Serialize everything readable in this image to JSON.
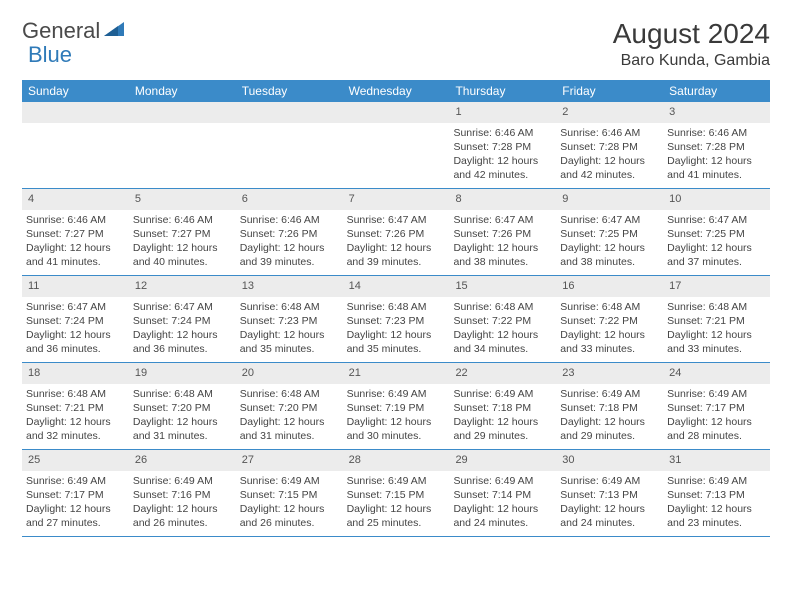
{
  "logo": {
    "text1": "General",
    "text2": "Blue",
    "color_general": "#5a5a5a",
    "color_blue": "#2f7ab8",
    "icon_color": "#2f7ab8"
  },
  "title": "August 2024",
  "location": "Baro Kunda, Gambia",
  "header_bg": "#3b8bc9",
  "header_text_color": "#ffffff",
  "daynum_bg": "#ececec",
  "border_color": "#3b8bc9",
  "weekdays": [
    "Sunday",
    "Monday",
    "Tuesday",
    "Wednesday",
    "Thursday",
    "Friday",
    "Saturday"
  ],
  "weeks": [
    [
      null,
      null,
      null,
      null,
      {
        "n": "1",
        "sr": "Sunrise: 6:46 AM",
        "ss": "Sunset: 7:28 PM",
        "dl": "Daylight: 12 hours and 42 minutes."
      },
      {
        "n": "2",
        "sr": "Sunrise: 6:46 AM",
        "ss": "Sunset: 7:28 PM",
        "dl": "Daylight: 12 hours and 42 minutes."
      },
      {
        "n": "3",
        "sr": "Sunrise: 6:46 AM",
        "ss": "Sunset: 7:28 PM",
        "dl": "Daylight: 12 hours and 41 minutes."
      }
    ],
    [
      {
        "n": "4",
        "sr": "Sunrise: 6:46 AM",
        "ss": "Sunset: 7:27 PM",
        "dl": "Daylight: 12 hours and 41 minutes."
      },
      {
        "n": "5",
        "sr": "Sunrise: 6:46 AM",
        "ss": "Sunset: 7:27 PM",
        "dl": "Daylight: 12 hours and 40 minutes."
      },
      {
        "n": "6",
        "sr": "Sunrise: 6:46 AM",
        "ss": "Sunset: 7:26 PM",
        "dl": "Daylight: 12 hours and 39 minutes."
      },
      {
        "n": "7",
        "sr": "Sunrise: 6:47 AM",
        "ss": "Sunset: 7:26 PM",
        "dl": "Daylight: 12 hours and 39 minutes."
      },
      {
        "n": "8",
        "sr": "Sunrise: 6:47 AM",
        "ss": "Sunset: 7:26 PM",
        "dl": "Daylight: 12 hours and 38 minutes."
      },
      {
        "n": "9",
        "sr": "Sunrise: 6:47 AM",
        "ss": "Sunset: 7:25 PM",
        "dl": "Daylight: 12 hours and 38 minutes."
      },
      {
        "n": "10",
        "sr": "Sunrise: 6:47 AM",
        "ss": "Sunset: 7:25 PM",
        "dl": "Daylight: 12 hours and 37 minutes."
      }
    ],
    [
      {
        "n": "11",
        "sr": "Sunrise: 6:47 AM",
        "ss": "Sunset: 7:24 PM",
        "dl": "Daylight: 12 hours and 36 minutes."
      },
      {
        "n": "12",
        "sr": "Sunrise: 6:47 AM",
        "ss": "Sunset: 7:24 PM",
        "dl": "Daylight: 12 hours and 36 minutes."
      },
      {
        "n": "13",
        "sr": "Sunrise: 6:48 AM",
        "ss": "Sunset: 7:23 PM",
        "dl": "Daylight: 12 hours and 35 minutes."
      },
      {
        "n": "14",
        "sr": "Sunrise: 6:48 AM",
        "ss": "Sunset: 7:23 PM",
        "dl": "Daylight: 12 hours and 35 minutes."
      },
      {
        "n": "15",
        "sr": "Sunrise: 6:48 AM",
        "ss": "Sunset: 7:22 PM",
        "dl": "Daylight: 12 hours and 34 minutes."
      },
      {
        "n": "16",
        "sr": "Sunrise: 6:48 AM",
        "ss": "Sunset: 7:22 PM",
        "dl": "Daylight: 12 hours and 33 minutes."
      },
      {
        "n": "17",
        "sr": "Sunrise: 6:48 AM",
        "ss": "Sunset: 7:21 PM",
        "dl": "Daylight: 12 hours and 33 minutes."
      }
    ],
    [
      {
        "n": "18",
        "sr": "Sunrise: 6:48 AM",
        "ss": "Sunset: 7:21 PM",
        "dl": "Daylight: 12 hours and 32 minutes."
      },
      {
        "n": "19",
        "sr": "Sunrise: 6:48 AM",
        "ss": "Sunset: 7:20 PM",
        "dl": "Daylight: 12 hours and 31 minutes."
      },
      {
        "n": "20",
        "sr": "Sunrise: 6:48 AM",
        "ss": "Sunset: 7:20 PM",
        "dl": "Daylight: 12 hours and 31 minutes."
      },
      {
        "n": "21",
        "sr": "Sunrise: 6:49 AM",
        "ss": "Sunset: 7:19 PM",
        "dl": "Daylight: 12 hours and 30 minutes."
      },
      {
        "n": "22",
        "sr": "Sunrise: 6:49 AM",
        "ss": "Sunset: 7:18 PM",
        "dl": "Daylight: 12 hours and 29 minutes."
      },
      {
        "n": "23",
        "sr": "Sunrise: 6:49 AM",
        "ss": "Sunset: 7:18 PM",
        "dl": "Daylight: 12 hours and 29 minutes."
      },
      {
        "n": "24",
        "sr": "Sunrise: 6:49 AM",
        "ss": "Sunset: 7:17 PM",
        "dl": "Daylight: 12 hours and 28 minutes."
      }
    ],
    [
      {
        "n": "25",
        "sr": "Sunrise: 6:49 AM",
        "ss": "Sunset: 7:17 PM",
        "dl": "Daylight: 12 hours and 27 minutes."
      },
      {
        "n": "26",
        "sr": "Sunrise: 6:49 AM",
        "ss": "Sunset: 7:16 PM",
        "dl": "Daylight: 12 hours and 26 minutes."
      },
      {
        "n": "27",
        "sr": "Sunrise: 6:49 AM",
        "ss": "Sunset: 7:15 PM",
        "dl": "Daylight: 12 hours and 26 minutes."
      },
      {
        "n": "28",
        "sr": "Sunrise: 6:49 AM",
        "ss": "Sunset: 7:15 PM",
        "dl": "Daylight: 12 hours and 25 minutes."
      },
      {
        "n": "29",
        "sr": "Sunrise: 6:49 AM",
        "ss": "Sunset: 7:14 PM",
        "dl": "Daylight: 12 hours and 24 minutes."
      },
      {
        "n": "30",
        "sr": "Sunrise: 6:49 AM",
        "ss": "Sunset: 7:13 PM",
        "dl": "Daylight: 12 hours and 24 minutes."
      },
      {
        "n": "31",
        "sr": "Sunrise: 6:49 AM",
        "ss": "Sunset: 7:13 PM",
        "dl": "Daylight: 12 hours and 23 minutes."
      }
    ]
  ]
}
